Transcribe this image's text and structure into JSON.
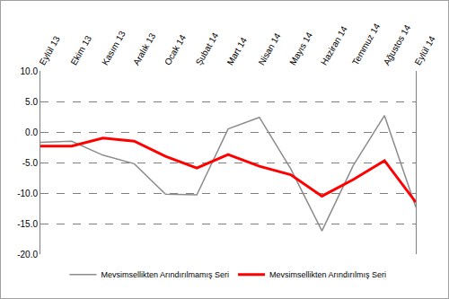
{
  "chart_data": {
    "type": "line",
    "categories": [
      "Eylül 13",
      "Ekim 13",
      "Kasım 13",
      "Aralık 13",
      "Ocak 14",
      "Şubat 14",
      "Mart 14",
      "Nisan 14",
      "Mayıs 14",
      "Haziran 14",
      "Temmuz 14",
      "Ağustos 14",
      "Eylül 14"
    ],
    "series": [
      {
        "name": "Mevsimsellikten Arındırılmamış Seri",
        "color": "#8c8c8c",
        "values": [
          -1.7,
          -1.5,
          -3.8,
          -5.2,
          -10.2,
          -10.3,
          0.5,
          2.4,
          -6.0,
          -16.2,
          -5.5,
          2.7,
          -12.3
        ]
      },
      {
        "name": "Mevsimsellikten Arındırılmış Seri",
        "color": "#ff0000",
        "values": [
          -2.3,
          -2.3,
          -1.0,
          -1.5,
          -4.0,
          -5.9,
          -3.7,
          -5.6,
          -7.0,
          -10.5,
          -7.8,
          -4.7,
          -11.5
        ]
      }
    ],
    "ylim": [
      -20,
      10
    ],
    "yticks": [
      {
        "value": -20,
        "label": "-20.0"
      },
      {
        "value": -15,
        "label": "-15.0"
      },
      {
        "value": -10,
        "label": "-10.0"
      },
      {
        "value": -5,
        "label": "-5.0"
      },
      {
        "value": 0,
        "label": "0.0"
      },
      {
        "value": 5,
        "label": "5.0"
      },
      {
        "value": 10,
        "label": "10.0"
      }
    ],
    "grid": true,
    "legend": "bottom"
  }
}
